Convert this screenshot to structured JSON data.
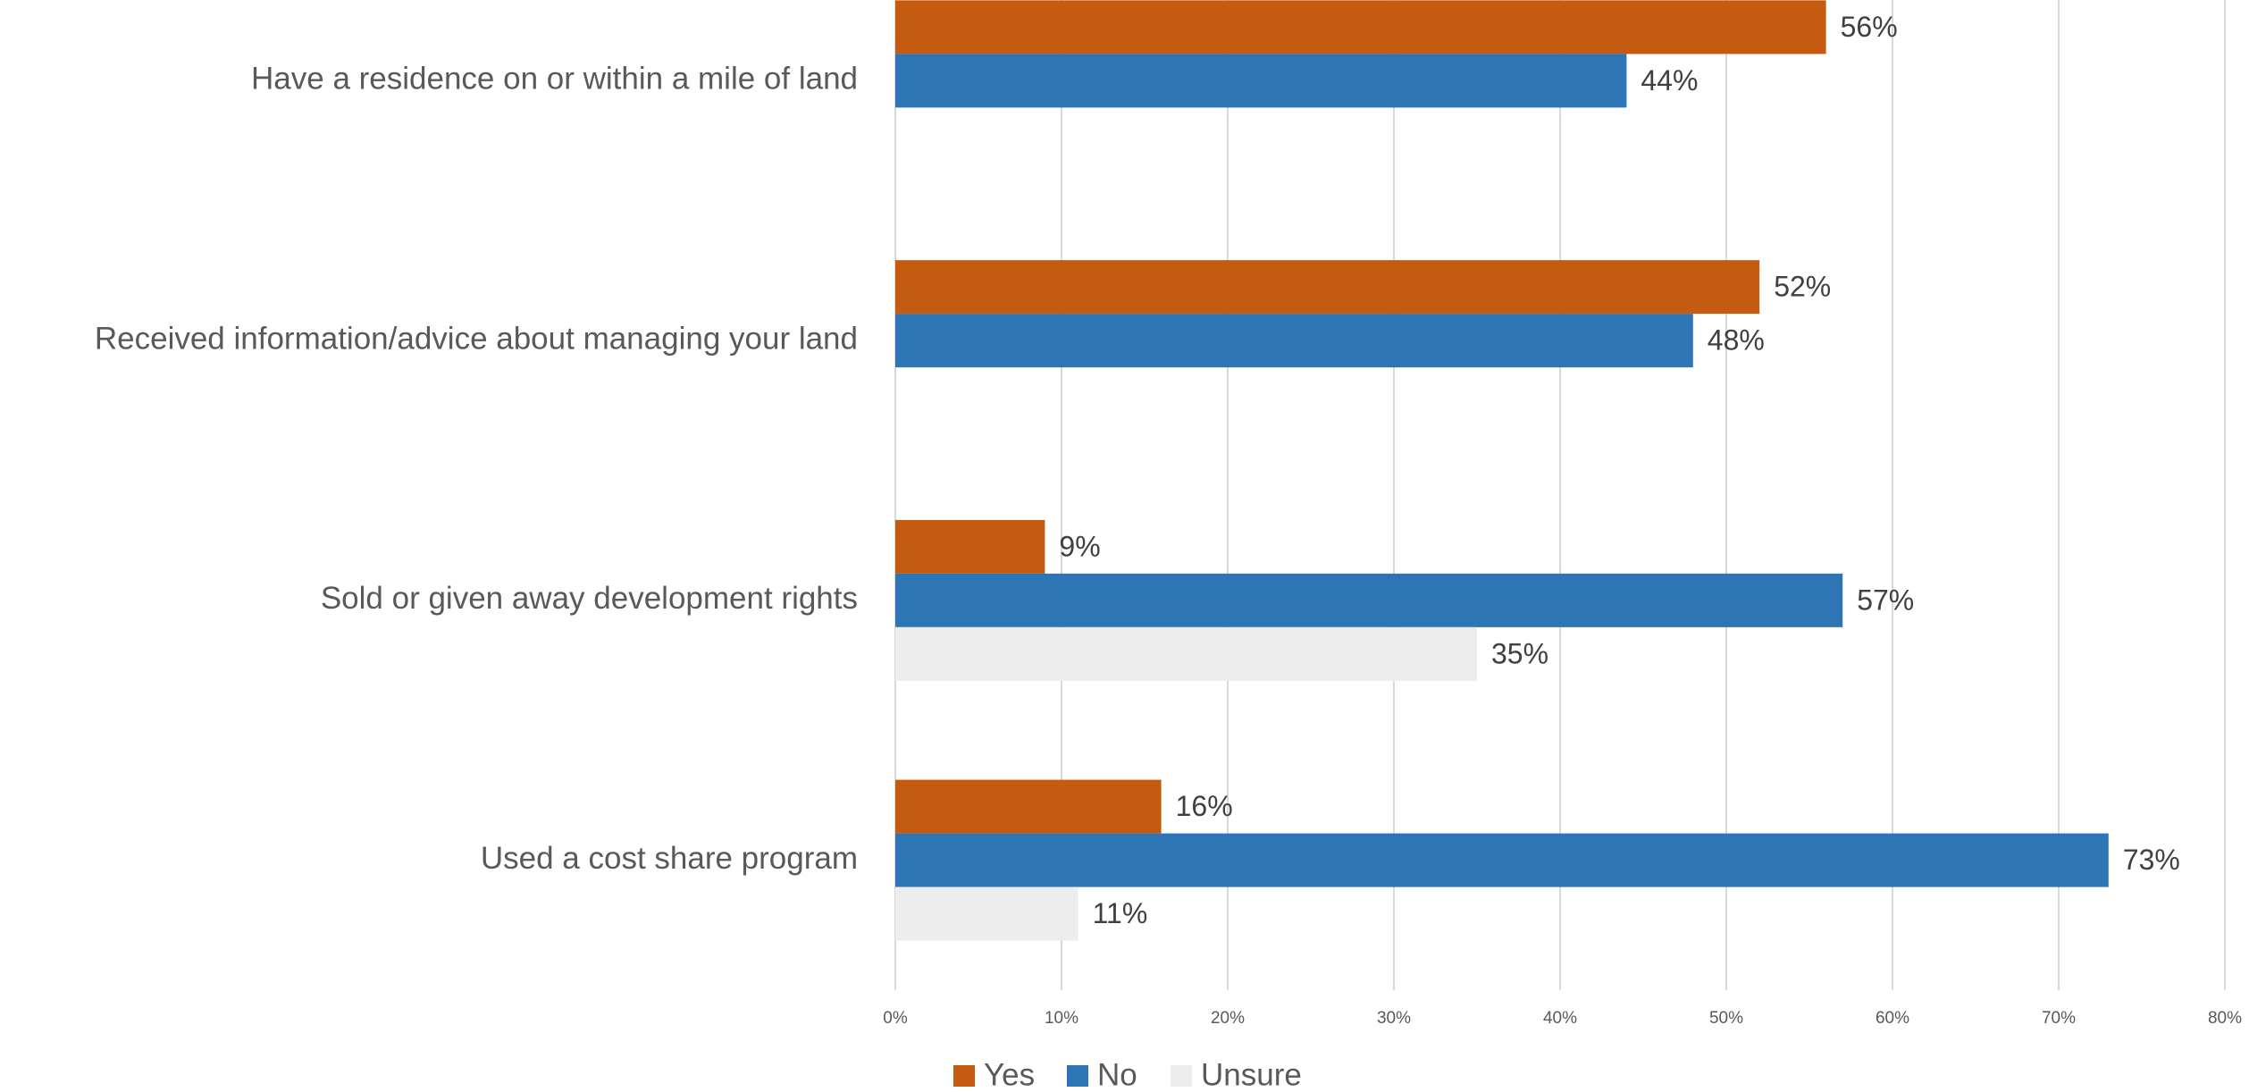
{
  "chart_data": {
    "type": "barh",
    "categories": [
      "Have a residence on or within a mile of land",
      "Received information/advice about managing your land",
      "Sold or given away development rights",
      "Used a cost share program"
    ],
    "series": [
      {
        "name": "Yes",
        "color": "#c55a11",
        "values": [
          56,
          52,
          9,
          16
        ],
        "value_labels": [
          "56%",
          "52%",
          "9%",
          "16%"
        ]
      },
      {
        "name": "No",
        "color": "#2e75b6",
        "values": [
          44,
          48,
          57,
          73
        ],
        "value_labels": [
          "44%",
          "48%",
          "57%",
          "73%"
        ]
      },
      {
        "name": "Unsure",
        "color": "#ededed",
        "values": [
          null,
          null,
          35,
          11
        ],
        "value_labels": [
          null,
          null,
          "35%",
          "11%"
        ]
      }
    ],
    "xlim": [
      0,
      80
    ],
    "xticks": [
      {
        "value": 0,
        "label": "0%"
      },
      {
        "value": 10,
        "label": "10%"
      },
      {
        "value": 20,
        "label": "20%"
      },
      {
        "value": 30,
        "label": "30%"
      },
      {
        "value": 40,
        "label": "40%"
      },
      {
        "value": 50,
        "label": "50%"
      },
      {
        "value": 60,
        "label": "60%"
      },
      {
        "value": 70,
        "label": "70%"
      },
      {
        "value": 80,
        "label": "80%"
      }
    ],
    "grid": true,
    "legend": "bottom"
  }
}
